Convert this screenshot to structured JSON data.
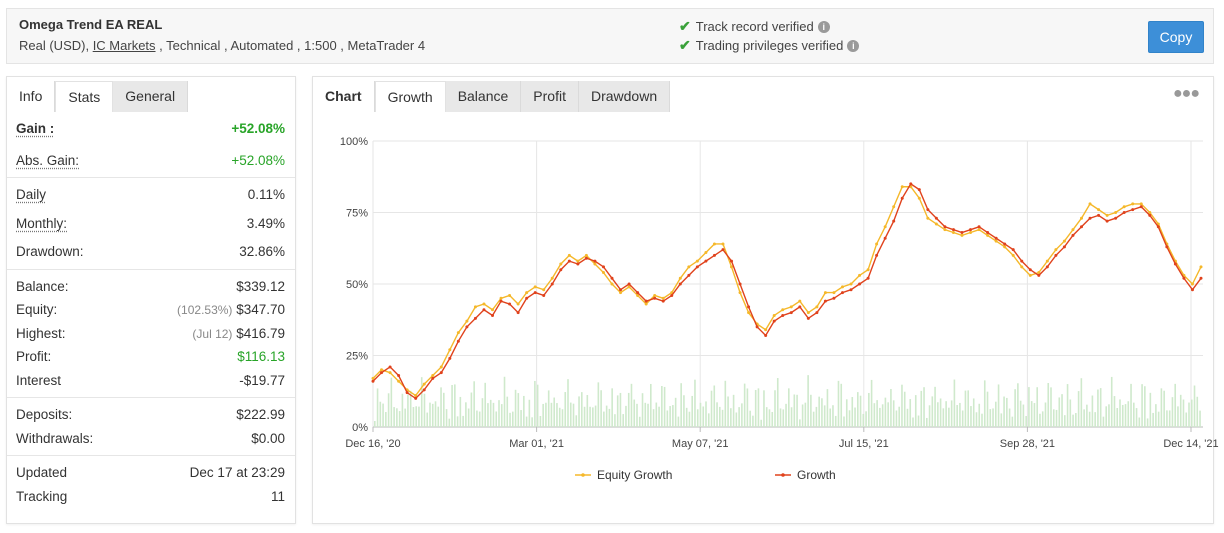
{
  "header": {
    "title": "Omega Trend EA REAL",
    "subtitle_prefix": "Real (USD), ",
    "broker": "IC Markets",
    "subtitle_suffix": " , Technical , Automated , 1:500 , MetaTrader 4",
    "verifications": [
      "Track record verified",
      "Trading privileges verified"
    ],
    "copy_label": "Copy"
  },
  "info_panel": {
    "tabs": [
      "Info",
      "Stats",
      "General"
    ],
    "active_tab": "Stats",
    "rows": {
      "gain": {
        "label": "Gain :",
        "value": "+52.08%"
      },
      "abs_gain": {
        "label": "Abs. Gain:",
        "value": "+52.08%"
      },
      "daily": {
        "label": "Daily",
        "value": "0.11%"
      },
      "monthly": {
        "label": "Monthly:",
        "value": "3.49%"
      },
      "drawdown": {
        "label": "Drawdown:",
        "value": "32.86%"
      },
      "balance": {
        "label": "Balance:",
        "value": "$339.12"
      },
      "equity": {
        "label": "Equity:",
        "note": "(102.53%)",
        "value": "$347.70"
      },
      "highest": {
        "label": "Highest:",
        "note": "(Jul 12)",
        "value": "$416.79"
      },
      "profit": {
        "label": "Profit:",
        "value": "$116.13"
      },
      "interest": {
        "label": "Interest",
        "value": "-$19.77"
      },
      "deposits": {
        "label": "Deposits:",
        "value": "$222.99"
      },
      "withdrawals": {
        "label": "Withdrawals:",
        "value": "$0.00"
      },
      "updated": {
        "label": "Updated",
        "value": "Dec 17 at 23:29"
      },
      "tracking": {
        "label": "Tracking",
        "value": "11"
      }
    }
  },
  "chart_panel": {
    "tabs": [
      "Chart",
      "Growth",
      "Balance",
      "Profit",
      "Drawdown"
    ],
    "active_tab": "Growth",
    "menu_icon": "more-dots-icon"
  },
  "colors": {
    "growth": "#e0421c",
    "equity_growth": "#f5b82a",
    "bars": "#cfe9cc",
    "accent": "#3d8fd8",
    "positive": "#28a428"
  },
  "chart_data": {
    "type": "line",
    "ylim": [
      0,
      100
    ],
    "y_ticks": [
      "0%",
      "25%",
      "50%",
      "75%",
      "100%"
    ],
    "x_labels": [
      "Dec 16, '20",
      "Mar 01, '21",
      "May 07, '21",
      "Jul 15, '21",
      "Sep 28, '21",
      "Dec 14, '21"
    ],
    "legend": [
      "Equity Growth",
      "Growth"
    ],
    "legend_position": "bottom",
    "grid": true,
    "series": [
      {
        "name": "Growth",
        "values": [
          16,
          19,
          21,
          18,
          12,
          10,
          13,
          17,
          19,
          24,
          30,
          35,
          38,
          41,
          39,
          44,
          43,
          40,
          45,
          47,
          46,
          50,
          55,
          58,
          57,
          59,
          58,
          56,
          52,
          48,
          50,
          47,
          44,
          45,
          44,
          46,
          50,
          53,
          56,
          58,
          60,
          62,
          58,
          50,
          42,
          35,
          32,
          37,
          39,
          40,
          42,
          38,
          40,
          44,
          45,
          47,
          48,
          50,
          52,
          60,
          66,
          72,
          80,
          85,
          83,
          76,
          73,
          70,
          69,
          68,
          69,
          70,
          68,
          66,
          64,
          62,
          58,
          55,
          53,
          56,
          60,
          63,
          67,
          70,
          73,
          74,
          72,
          73,
          75,
          76,
          77,
          74,
          70,
          63,
          57,
          52,
          48,
          52
        ]
      },
      {
        "name": "Equity Growth",
        "values": [
          17,
          20,
          19,
          16,
          13,
          11,
          15,
          18,
          21,
          27,
          33,
          37,
          42,
          43,
          41,
          45,
          46,
          43,
          47,
          49,
          48,
          52,
          57,
          60,
          58,
          60,
          57,
          54,
          50,
          47,
          49,
          46,
          43,
          46,
          45,
          47,
          52,
          56,
          58,
          61,
          64,
          64,
          56,
          47,
          40,
          36,
          34,
          39,
          41,
          42,
          44,
          40,
          42,
          47,
          47,
          49,
          50,
          53,
          55,
          64,
          70,
          77,
          84,
          84,
          80,
          73,
          71,
          69,
          68,
          67,
          68,
          69,
          67,
          65,
          63,
          60,
          56,
          53,
          54,
          58,
          62,
          65,
          69,
          73,
          78,
          76,
          74,
          75,
          77,
          78,
          78,
          75,
          71,
          64,
          58,
          53,
          50,
          56
        ]
      }
    ]
  }
}
